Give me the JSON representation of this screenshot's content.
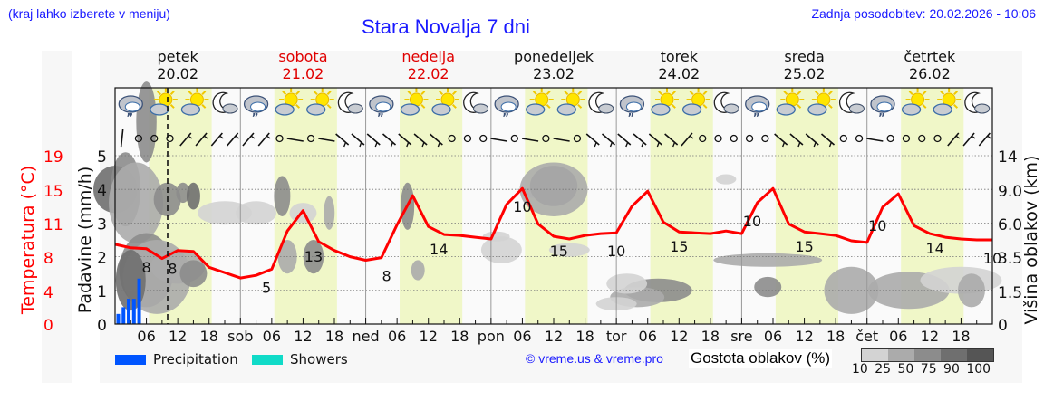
{
  "header": {
    "left_hint": "(kraj lahko izberete v meniju)",
    "title": "Stara Novalja 7 dni",
    "last_update": "Zadnja posodobitev: 20.02.2026 - 10:06"
  },
  "days": [
    {
      "name": "petek",
      "date": "20.02",
      "weekend": false
    },
    {
      "name": "sobota",
      "date": "21.02",
      "weekend": true
    },
    {
      "name": "nedelja",
      "date": "22.02",
      "weekend": true
    },
    {
      "name": "ponedeljek",
      "date": "23.02",
      "weekend": false
    },
    {
      "name": "torek",
      "date": "24.02",
      "weekend": false
    },
    {
      "name": "sreda",
      "date": "25.02",
      "weekend": false
    },
    {
      "name": "četrtek",
      "date": "26.02",
      "weekend": false
    }
  ],
  "legend": {
    "precipitation": "Precipitation",
    "showers": "Showers",
    "copyright": "© vreme.us & vreme.pro",
    "cloud_density": "Gostota oblakov (%)",
    "cloud_scale": "10 25 50 75 90 100"
  },
  "colors": {
    "precipitation": "#0055ff",
    "showers": "#10dbc8",
    "temperature": "#ff0000",
    "daylight": "#f0f7c8",
    "link": "#1a1aff",
    "weekend": "#e00000"
  },
  "chart_data": {
    "type": "line",
    "title": "Stara Novalja 7 dni",
    "xlabel": "",
    "ylabel_left_temperature": "Temperatura (°C)",
    "ylabel_left_precip": "Padavine (mm/h)",
    "ylabel_right": "Višina oblakov (km)",
    "x_tick_labels": [
      "06",
      "12",
      "18",
      "sob",
      "06",
      "12",
      "18",
      "ned",
      "06",
      "12",
      "18",
      "pon",
      "06",
      "12",
      "18",
      "tor",
      "06",
      "12",
      "18",
      "sre",
      "06",
      "12",
      "18",
      "čet",
      "06",
      "12",
      "18"
    ],
    "temperature_ticks": [
      0,
      4,
      8,
      11,
      15,
      19
    ],
    "precip_ticks": [
      0,
      1,
      2,
      3,
      4,
      5
    ],
    "cloud_height_ticks": [
      "0",
      "1.5",
      "3.5",
      "6.0",
      "9.0",
      "14"
    ],
    "precip_ylim": [
      0,
      5
    ],
    "temperature_ylim": [
      0,
      19
    ],
    "grid": true,
    "current_time_marker": "20.02 10:06",
    "series": [
      {
        "name": "Temperatura",
        "hours_from_start": [
          0,
          3,
          6,
          9,
          12,
          15,
          18,
          21,
          24,
          27,
          30,
          33,
          36,
          39,
          42,
          45,
          48,
          51,
          54,
          57,
          60,
          63,
          66,
          69,
          72,
          75,
          78,
          81,
          84,
          87,
          90,
          93,
          96,
          99,
          102,
          105,
          108,
          111,
          114,
          117,
          120,
          123,
          126,
          129,
          132,
          135,
          138,
          141,
          144,
          147,
          150,
          153,
          156,
          159,
          162,
          165,
          168
        ],
        "values": [
          9,
          8.6,
          8.5,
          7.4,
          8.3,
          8.2,
          6.4,
          5.8,
          5.2,
          5.5,
          6.2,
          10.5,
          12.8,
          9.3,
          8.3,
          7.6,
          7.2,
          7.5,
          11.2,
          14.5,
          11,
          10.1,
          10,
          9.8,
          9.6,
          13.5,
          15.3,
          11.3,
          9.9,
          9.6,
          10,
          10.2,
          10.3,
          13.3,
          15,
          11.5,
          10.4,
          10.3,
          10.2,
          10.5,
          10.2,
          13.7,
          15.3,
          11.3,
          10.4,
          10.2,
          10,
          9.4,
          9.2,
          13.2,
          14.7,
          11.1,
          10.2,
          9.8,
          9.6,
          9.5,
          9.5
        ]
      },
      {
        "name": "Precipitation",
        "hours_from_start": [
          0,
          1,
          2,
          3,
          4
        ],
        "values": [
          0.3,
          0.5,
          0.75,
          0.75,
          1.35
        ]
      }
    ],
    "temperature_annotations": [
      {
        "label": "8",
        "hour": 6
      },
      {
        "label": "8",
        "hour": 11
      },
      {
        "label": "5",
        "hour": 29
      },
      {
        "label": "13",
        "hour": 38
      },
      {
        "label": "8",
        "hour": 52
      },
      {
        "label": "14",
        "hour": 62
      },
      {
        "label": "10",
        "hour": 78
      },
      {
        "label": "15",
        "hour": 85
      },
      {
        "label": "10",
        "hour": 96
      },
      {
        "label": "15",
        "hour": 108
      },
      {
        "label": "10",
        "hour": 122
      },
      {
        "label": "15",
        "hour": 132
      },
      {
        "label": "10",
        "hour": 146
      },
      {
        "label": "14",
        "hour": 157
      },
      {
        "label": "10",
        "hour": 168
      }
    ],
    "legend": [
      "Precipitation",
      "Showers"
    ],
    "cloud_density_scale": [
      10,
      25,
      50,
      75,
      90,
      100
    ]
  }
}
